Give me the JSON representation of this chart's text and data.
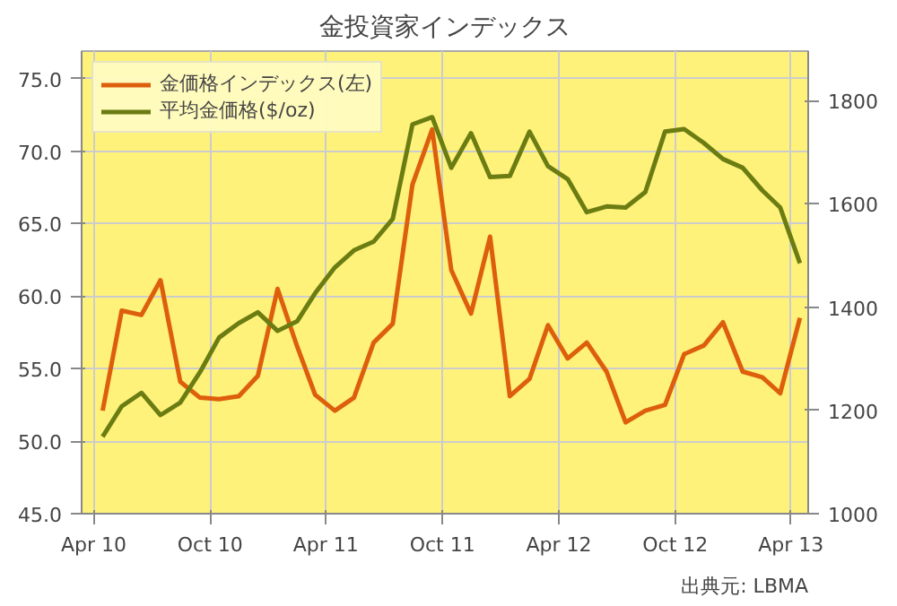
{
  "chart_data": {
    "type": "line",
    "title": "金投資家インデックス",
    "annotations": [
      "出典元: LBMA"
    ],
    "x": [
      "2010-04-15",
      "2010-05-15",
      "2010-06-15",
      "2010-07-15",
      "2010-08-15",
      "2010-09-15",
      "2010-10-15",
      "2010-11-15",
      "2010-12-15",
      "2011-01-15",
      "2011-02-15",
      "2011-03-15",
      "2011-04-15",
      "2011-05-15",
      "2011-06-15",
      "2011-07-15",
      "2011-08-15",
      "2011-09-15",
      "2011-10-15",
      "2011-11-15",
      "2011-12-15",
      "2012-01-15",
      "2012-02-15",
      "2012-03-15",
      "2012-04-15",
      "2012-05-15",
      "2012-06-15",
      "2012-07-15",
      "2012-08-15",
      "2012-09-15",
      "2012-10-15",
      "2012-11-15",
      "2012-12-15",
      "2013-01-15",
      "2013-02-15",
      "2013-03-15",
      "2013-04-15"
    ],
    "series": [
      {
        "name": "金価格インデックス(左)",
        "color": "#dd5f0c",
        "values": [
          52.1,
          59.0,
          58.7,
          61.1,
          54.1,
          53.0,
          52.9,
          53.1,
          54.5,
          60.5,
          56.5,
          53.2,
          52.1,
          53.0,
          56.8,
          58.1,
          67.7,
          71.5,
          61.8,
          58.8,
          64.1,
          53.1,
          54.3,
          58.0,
          55.7,
          56.8,
          54.8,
          51.3,
          52.1,
          52.5,
          56.0,
          56.6,
          58.2,
          54.8,
          54.4,
          53.3,
          58.5
        ]
      },
      {
        "name": "平均金価格($/oz)",
        "color": "#6b7d12",
        "axis": "y2",
        "values": [
          1149,
          1208,
          1234,
          1191,
          1215,
          1274,
          1341,
          1369,
          1390,
          1354,
          1373,
          1427,
          1477,
          1510,
          1527,
          1571,
          1754,
          1768,
          1670,
          1737,
          1652,
          1654,
          1740,
          1673,
          1648,
          1584,
          1595,
          1593,
          1623,
          1740,
          1745,
          1718,
          1687,
          1670,
          1626,
          1593,
          1485
        ]
      }
    ],
    "xlim": [
      "2010-03-13",
      "2013-04-28"
    ],
    "xticks": [
      {
        "value": "2010-04",
        "label": "Apr 10"
      },
      {
        "value": "2010-10",
        "label": "Oct 10"
      },
      {
        "value": "2011-04",
        "label": "Apr 11"
      },
      {
        "value": "2011-10",
        "label": "Oct 11"
      },
      {
        "value": "2012-04",
        "label": "Apr 12"
      },
      {
        "value": "2012-10",
        "label": "Oct 12"
      },
      {
        "value": "2013-04",
        "label": "Apr 13"
      }
    ],
    "ylim": [
      45,
      76.9
    ],
    "yticks": [
      {
        "value": 45,
        "label": "45.0"
      },
      {
        "value": 50,
        "label": "50.0"
      },
      {
        "value": 55,
        "label": "55.0"
      },
      {
        "value": 60,
        "label": "60.0"
      },
      {
        "value": 65,
        "label": "65.0"
      },
      {
        "value": 70,
        "label": "70.0"
      },
      {
        "value": 75,
        "label": "75.0"
      }
    ],
    "y2lim": [
      1000,
      1896
    ],
    "y2ticks": [
      1000,
      1200,
      1400,
      1600,
      1800
    ],
    "grid": true,
    "legend": "top left",
    "marker": "none",
    "line_style": "solid"
  }
}
